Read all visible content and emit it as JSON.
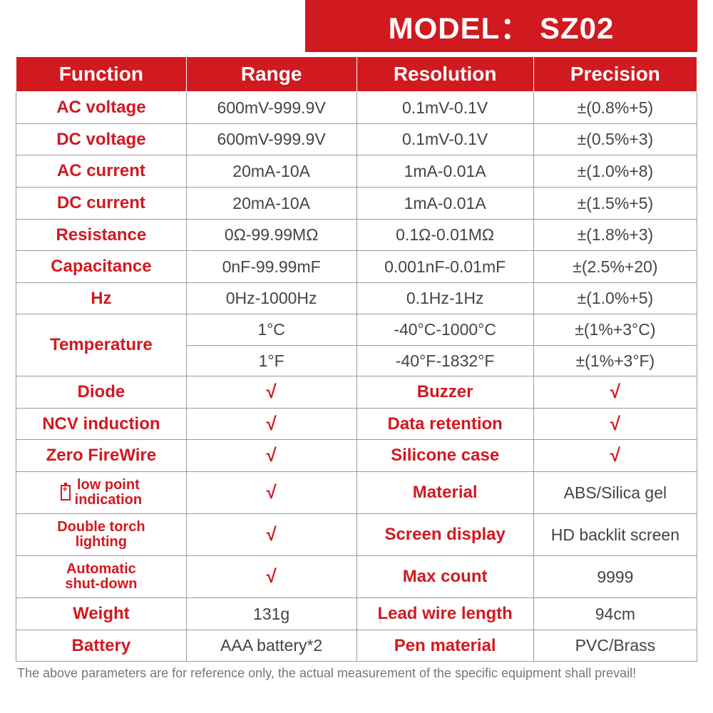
{
  "banner": "MODEL： SZ02",
  "headers": [
    "Function",
    "Range",
    "Resolution",
    "Precision"
  ],
  "spec_rows": [
    {
      "func": "AC voltage",
      "range": "600mV-999.9V",
      "res": "0.1mV-0.1V",
      "prec": "±(0.8%+5)"
    },
    {
      "func": "DC voltage",
      "range": "600mV-999.9V",
      "res": "0.1mV-0.1V",
      "prec": "±(0.5%+3)"
    },
    {
      "func": "AC current",
      "range": "20mA-10A",
      "res": "1mA-0.01A",
      "prec": "±(1.0%+8)"
    },
    {
      "func": "DC current",
      "range": "20mA-10A",
      "res": "1mA-0.01A",
      "prec": "±(1.5%+5)"
    },
    {
      "func": "Resistance",
      "range": "0Ω-99.99MΩ",
      "res": "0.1Ω-0.01MΩ",
      "prec": "±(1.8%+3)"
    },
    {
      "func": "Capacitance",
      "range": "0nF-99.99mF",
      "res": "0.001nF-0.01mF",
      "prec": "±(2.5%+20)"
    },
    {
      "func": "Hz",
      "range": "0Hz-1000Hz",
      "res": "0.1Hz-1Hz",
      "prec": "±(1.0%+5)"
    }
  ],
  "temperature": {
    "label": "Temperature",
    "rows": [
      {
        "range": "1°C",
        "res": "-40°C-1000°C",
        "prec": "±(1%+3°C)"
      },
      {
        "range": "1°F",
        "res": "-40°F-1832°F",
        "prec": "±(1%+3°F)"
      }
    ]
  },
  "check": "√",
  "feature_rows": [
    {
      "l": "Diode",
      "lv": "√",
      "r": "Buzzer",
      "rv": "√"
    },
    {
      "l": "NCV induction",
      "lv": "√",
      "r": "Data retention",
      "rv": "√"
    },
    {
      "l": "Zero FireWire",
      "lv": "√",
      "r": "Silicone case",
      "rv": "√"
    }
  ],
  "misc_rows": [
    {
      "l_icon": true,
      "l": "low point indication",
      "lv": "√",
      "r": "Material",
      "rv": "ABS/Silica gel"
    },
    {
      "l": "Double torch lighting",
      "lv": "√",
      "r": "Screen display",
      "rv": "HD backlit screen"
    },
    {
      "l": "Automatic shut-down",
      "lv": "√",
      "r": "Max count",
      "rv": "9999"
    },
    {
      "l": "Weight",
      "lv": "131g",
      "r": "Lead wire length",
      "rv": "94cm"
    },
    {
      "l": "Battery",
      "lv": "AAA battery*2",
      "r": "Pen material",
      "rv": "PVC/Brass"
    }
  ],
  "footnote": "The above parameters are for reference only, the actual measurement of the specific equipment shall prevail!",
  "colors": {
    "brand_red": "#d11920",
    "border": "#9a9a9a",
    "text_gray": "#444444",
    "footnote": "#777777",
    "bg": "#ffffff"
  },
  "type": "table"
}
